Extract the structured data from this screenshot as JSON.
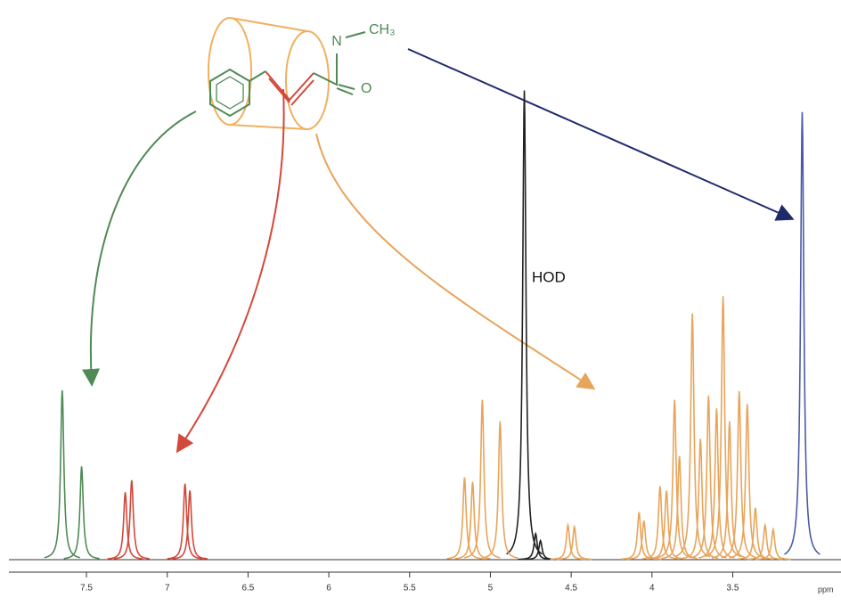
{
  "chart_data": {
    "type": "spectrum",
    "xlabel": "ppm",
    "annotation": "HOD",
    "structure_labels": {
      "amide_n": "N",
      "methyl": "CH₃",
      "carbonyl_o": "O"
    },
    "xlim": [
      7.98,
      2.83
    ],
    "ylim": [
      0,
      560
    ],
    "xticks": [
      7.5,
      7.0,
      6.5,
      6.0,
      5.5,
      5.0,
      4.5,
      4.0,
      3.5
    ],
    "series": [
      {
        "color": "#4f8a55",
        "x": [
          7.65,
          7.53
        ],
        "values": [
          196,
          108
        ]
      },
      {
        "color": "#d2483a",
        "x": [
          7.26,
          7.22,
          6.89,
          6.86
        ],
        "values": [
          78,
          92,
          88,
          80
        ]
      },
      {
        "color": "#222222",
        "x": [
          4.79,
          4.72,
          4.69
        ],
        "values": [
          543,
          30,
          22
        ]
      },
      {
        "color": "#e8a45a",
        "x": [
          5.16,
          5.11,
          5.05,
          4.94,
          4.52,
          4.48,
          4.08,
          4.05,
          3.95,
          3.91,
          3.86,
          3.83,
          3.75,
          3.7,
          3.65,
          3.6,
          3.56,
          3.52,
          3.46,
          3.41,
          3.36,
          3.3,
          3.25
        ],
        "values": [
          95,
          90,
          185,
          160,
          40,
          38,
          55,
          45,
          85,
          80,
          185,
          120,
          285,
          140,
          190,
          175,
          305,
          160,
          195,
          180,
          60,
          40,
          35
        ]
      },
      {
        "color": "#4a5aa8",
        "x": [
          3.07
        ],
        "values": [
          518
        ]
      }
    ]
  }
}
